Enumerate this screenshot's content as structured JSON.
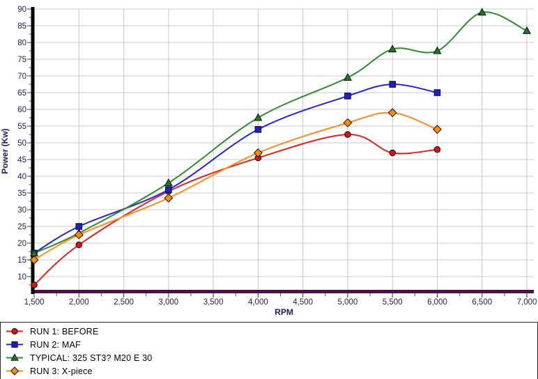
{
  "chart_data": {
    "type": "line",
    "title": "",
    "xlabel": "RPM",
    "ylabel": "Power (Kw)",
    "xlim": [
      1500,
      7000
    ],
    "ylim": [
      5,
      90
    ],
    "x_major_ticks": [
      1500,
      2000,
      2500,
      3000,
      3500,
      4000,
      4500,
      5000,
      5500,
      6000,
      6500,
      7000
    ],
    "x_tick_labels": [
      "1,500",
      "2,000",
      "2,500",
      "3,000",
      "3,500",
      "4,000",
      "4,500",
      "5,000",
      "5,500",
      "6,000",
      "6,500",
      "7,000"
    ],
    "x_minor_step": 250,
    "y_major_ticks": [
      10,
      15,
      20,
      25,
      30,
      35,
      40,
      45,
      50,
      55,
      60,
      65,
      70,
      75,
      80,
      85,
      90
    ],
    "y_minor_step": 2.5,
    "grid": true,
    "legend_position": "bottom-left",
    "series": [
      {
        "name": "RUN 1: BEFORE",
        "marker": "circle",
        "color": "#e32222",
        "marker_color": "#dd1111",
        "points": [
          [
            1500,
            7.5
          ],
          [
            2000,
            19.5
          ],
          [
            3000,
            35.5
          ],
          [
            4000,
            45.5
          ],
          [
            5000,
            52.5
          ],
          [
            5500,
            47
          ],
          [
            6000,
            48
          ]
        ]
      },
      {
        "name": "RUN 2: MAF",
        "marker": "square",
        "color": "#2323dd",
        "marker_color": "#1d1dd0",
        "points": [
          [
            1500,
            17
          ],
          [
            2000,
            25
          ],
          [
            3000,
            36
          ],
          [
            4000,
            54
          ],
          [
            5000,
            64
          ],
          [
            5500,
            67.5
          ],
          [
            6000,
            65
          ]
        ]
      },
      {
        "name": "TYPICAL: 325 ST3? M20 E 30",
        "marker": "triangle",
        "color": "#2e8b2e",
        "marker_color": "#1f7a1f",
        "points": [
          [
            1500,
            17
          ],
          [
            2000,
            23
          ],
          [
            3000,
            38
          ],
          [
            4000,
            57.5
          ],
          [
            5000,
            69.5
          ],
          [
            5500,
            78
          ],
          [
            6000,
            77.5
          ],
          [
            6500,
            89
          ],
          [
            7000,
            83.5
          ]
        ]
      },
      {
        "name": "RUN 3: X-piece",
        "marker": "diamond",
        "color": "#ff8c1e",
        "marker_color": "#ff8c00",
        "points": [
          [
            1500,
            15
          ],
          [
            2000,
            22.5
          ],
          [
            3000,
            33.5
          ],
          [
            4000,
            47
          ],
          [
            5000,
            56
          ],
          [
            5500,
            59
          ],
          [
            6000,
            54
          ]
        ]
      }
    ],
    "style": {
      "grid_color": "#c9c9c9",
      "y_axis_color": "#000000",
      "x_axis_color": "#4a1342",
      "tick_label_color": "#1e1e55",
      "axis_title_color": "#1e1e55",
      "legend_text_color": "#000000",
      "marker_outline": "#111111",
      "legend_border": "#2a2a2a",
      "background": "#ffffff"
    }
  }
}
